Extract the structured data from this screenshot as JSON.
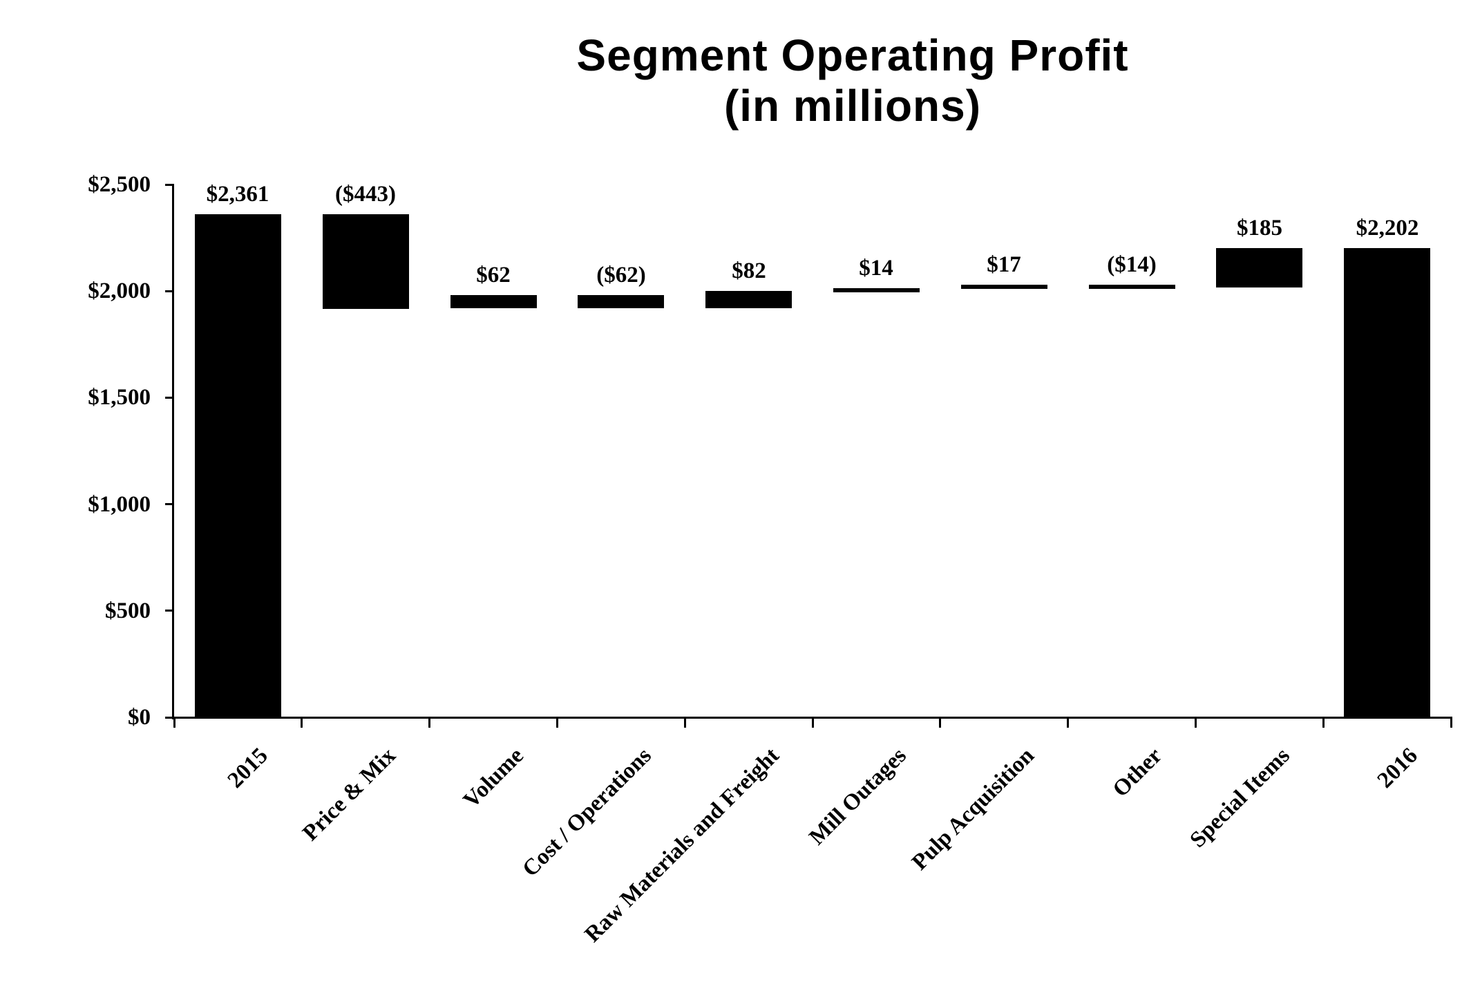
{
  "title": {
    "line1": "Segment Operating Profit",
    "line2": "(in millions)"
  },
  "chart_data": {
    "type": "bar",
    "subtype": "waterfall",
    "title": "Segment Operating Profit (in millions)",
    "xlabel": "",
    "ylabel": "",
    "grid": false,
    "legend": false,
    "bar_color": "#000000",
    "axis_color": "#000000",
    "ylim": [
      0,
      2500
    ],
    "ytick_step": 500,
    "yticks": [
      {
        "value": 0,
        "label": "$0"
      },
      {
        "value": 500,
        "label": "$500"
      },
      {
        "value": 1000,
        "label": "$1,000"
      },
      {
        "value": 1500,
        "label": "$1,500"
      },
      {
        "value": 2000,
        "label": "$2,000"
      },
      {
        "value": 2500,
        "label": "$2,500"
      }
    ],
    "categories": [
      "2015",
      "Price & Mix",
      "Volume",
      "Cost / Operations",
      "Raw Materials and Freight",
      "Mill Outages",
      "Pulp Acquisition",
      "Other",
      "Special Items",
      "2016"
    ],
    "bars": [
      {
        "category": "2015",
        "value": 2361,
        "display": "$2,361",
        "role": "total",
        "start": 0,
        "end": 2361
      },
      {
        "category": "Price & Mix",
        "value": -443,
        "display": "($443)",
        "role": "decrease",
        "start": 2361,
        "end": 1918
      },
      {
        "category": "Volume",
        "value": 62,
        "display": "$62",
        "role": "increase",
        "start": 1918,
        "end": 1980
      },
      {
        "category": "Cost / Operations",
        "value": -62,
        "display": "($62)",
        "role": "decrease",
        "start": 1980,
        "end": 1918
      },
      {
        "category": "Raw Materials and Freight",
        "value": 82,
        "display": "$82",
        "role": "increase",
        "start": 1918,
        "end": 2000
      },
      {
        "category": "Mill Outages",
        "value": 14,
        "display": "$14",
        "role": "increase",
        "start": 2000,
        "end": 2014
      },
      {
        "category": "Pulp Acquisition",
        "value": 17,
        "display": "$17",
        "role": "increase",
        "start": 2014,
        "end": 2031
      },
      {
        "category": "Other",
        "value": -14,
        "display": "($14)",
        "role": "decrease",
        "start": 2031,
        "end": 2017
      },
      {
        "category": "Special Items",
        "value": 185,
        "display": "$185",
        "role": "increase",
        "start": 2017,
        "end": 2202
      },
      {
        "category": "2016",
        "value": 2202,
        "display": "$2,202",
        "role": "total",
        "start": 0,
        "end": 2202
      }
    ]
  }
}
